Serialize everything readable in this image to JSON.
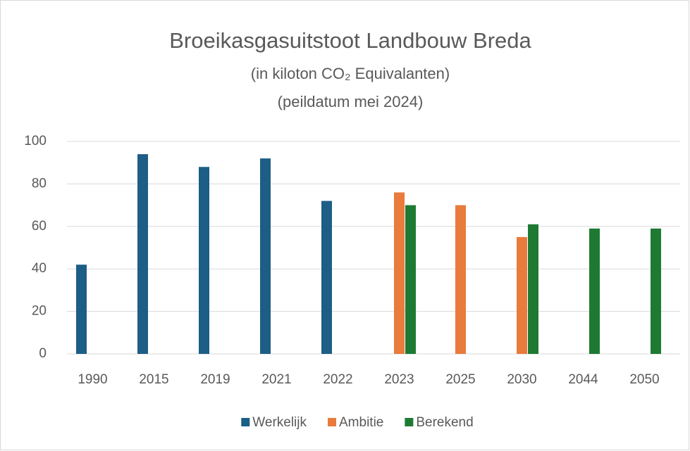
{
  "chart_data": {
    "type": "bar",
    "title": "Broeikasgasuitstoot Landbouw Breda",
    "subtitle": "(in kiloton CO₂ Equivalanten)",
    "subtitle2": "(peildatum mei 2024)",
    "categories": [
      "1990",
      "2015",
      "2019",
      "2021",
      "2022",
      "2023",
      "2025",
      "2030",
      "2044",
      "2050"
    ],
    "series": [
      {
        "name": "Werkelijk",
        "color": "#1d5e86",
        "values": [
          42,
          94,
          88,
          92,
          72,
          null,
          null,
          null,
          null,
          null
        ]
      },
      {
        "name": "Ambitie",
        "color": "#e97b3c",
        "values": [
          null,
          null,
          null,
          null,
          null,
          76,
          70,
          55,
          null,
          null
        ]
      },
      {
        "name": "Berekend",
        "color": "#1e7a33",
        "values": [
          null,
          null,
          null,
          null,
          null,
          70,
          null,
          61,
          59,
          59
        ]
      }
    ],
    "ylim": [
      0,
      100
    ],
    "yticks": [
      0,
      20,
      40,
      60,
      80,
      100
    ],
    "grid": true,
    "legend": "bottom"
  }
}
